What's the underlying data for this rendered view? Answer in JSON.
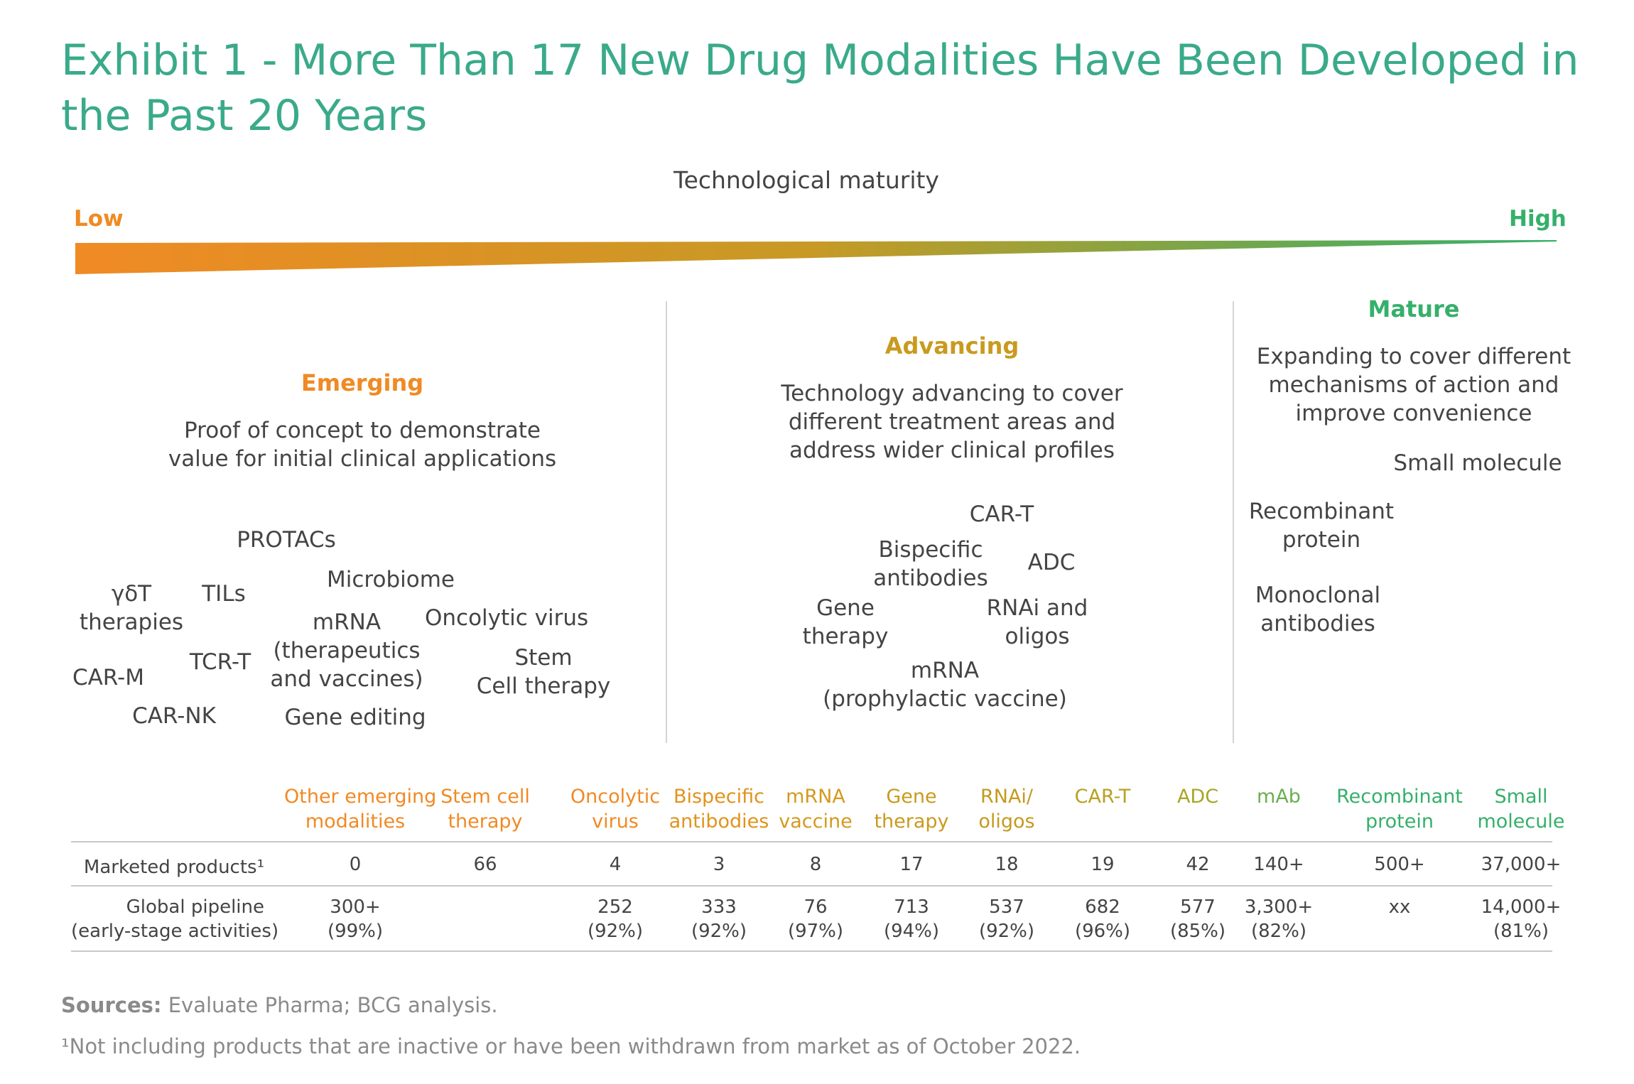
{
  "title": "Exhibit 1 - More Than 17 New Drug Modalities Have Been Developed in the Past 20 Years",
  "scale": {
    "label": "Technological maturity",
    "low": "Low",
    "high": "High",
    "low_color": "#f08a24",
    "high_color": "#35b06a"
  },
  "sections": {
    "emerging": {
      "heading": "Emerging",
      "color": "#f08a24",
      "desc_line1": "Proof of concept to demonstrate",
      "desc_line2": "value for initial clinical applications",
      "items": {
        "protacs": "PROTACs",
        "microbiome": "Microbiome",
        "gdt_1": "γδT",
        "gdt_2": "therapies",
        "tils": "TILs",
        "mrna_1": "mRNA",
        "mrna_2": "(therapeutics",
        "mrna_3": "and vaccines)",
        "oncolytic": "Oncolytic virus",
        "tcrt": "TCR-T",
        "carm": "CAR-M",
        "stem_1": "Stem",
        "stem_2": "Cell therapy",
        "carnk": "CAR-NK",
        "gene_editing": "Gene editing"
      }
    },
    "advancing": {
      "heading": "Advancing",
      "color": "#c99a1e",
      "desc_line1": "Technology advancing to cover",
      "desc_line2": "different treatment areas and",
      "desc_line3": "address wider clinical profiles",
      "items": {
        "cart": "CAR-T",
        "bispecific_1": "Bispecific",
        "bispecific_2": "antibodies",
        "adc": "ADC",
        "gene_1": "Gene",
        "gene_2": "therapy",
        "rnai_1": "RNAi and",
        "rnai_2": "oligos",
        "mrna_1": "mRNA",
        "mrna_2": "(prophylactic vaccine)"
      }
    },
    "mature": {
      "heading": "Mature",
      "color": "#35b06a",
      "desc_line1": "Expanding to cover different",
      "desc_line2": "mechanisms of action and",
      "desc_line3": "improve convenience",
      "items": {
        "small_molecule": "Small molecule",
        "recombinant_1": "Recombinant",
        "recombinant_2": "protein",
        "monoclonal_1": "Monoclonal",
        "monoclonal_2": "antibodies"
      }
    }
  },
  "table": {
    "columns": [
      {
        "line1": "Other emerging",
        "line2": "modalities",
        "color": "#f08a24"
      },
      {
        "line1": "Stem cell",
        "line2": "therapy",
        "color": "#f08a24"
      },
      {
        "line1": "Oncolytic",
        "line2": "virus",
        "color": "#f08a24"
      },
      {
        "line1": "Bispecific",
        "line2": "antibodies",
        "color": "#e0931c"
      },
      {
        "line1": "mRNA",
        "line2": "vaccine",
        "color": "#d49a1e"
      },
      {
        "line1": "Gene",
        "line2": "therapy",
        "color": "#c99a1e"
      },
      {
        "line1": "RNAi/",
        "line2": "oligos",
        "color": "#c49a1e"
      },
      {
        "line1": "CAR-T",
        "line2": "",
        "color": "#b9a020"
      },
      {
        "line1": "ADC",
        "line2": "",
        "color": "#a8a624"
      },
      {
        "line1": "mAb",
        "line2": "",
        "color": "#6cae50"
      },
      {
        "line1": "Recombinant",
        "line2": "protein",
        "color": "#35b06a"
      },
      {
        "line1": "Small",
        "line2": "molecule",
        "color": "#35b06a"
      }
    ],
    "row1_label": "Marketed products¹",
    "row1": [
      "0",
      "66",
      "4",
      "3",
      "8",
      "17",
      "18",
      "19",
      "42",
      "140+",
      "500+",
      "37,000+"
    ],
    "row2_label_1": "Global pipeline",
    "row2_label_2": "(early-stage activities)",
    "row2_top": [
      "300+",
      "",
      "252",
      "333",
      "76",
      "713",
      "537",
      "682",
      "577",
      "3,300+",
      "xx",
      "14,000+"
    ],
    "row2_bottom": [
      "(99%)",
      "",
      "(92%)",
      "(92%)",
      "(97%)",
      "(94%)",
      "(92%)",
      "(96%)",
      "(85%)",
      "(82%)",
      "",
      "(81%)"
    ]
  },
  "sources_label": "Sources:",
  "sources_text": " Evaluate Pharma; BCG analysis.",
  "footnote": "¹Not including products that are inactive or have been withdrawn from market as of October 2022."
}
